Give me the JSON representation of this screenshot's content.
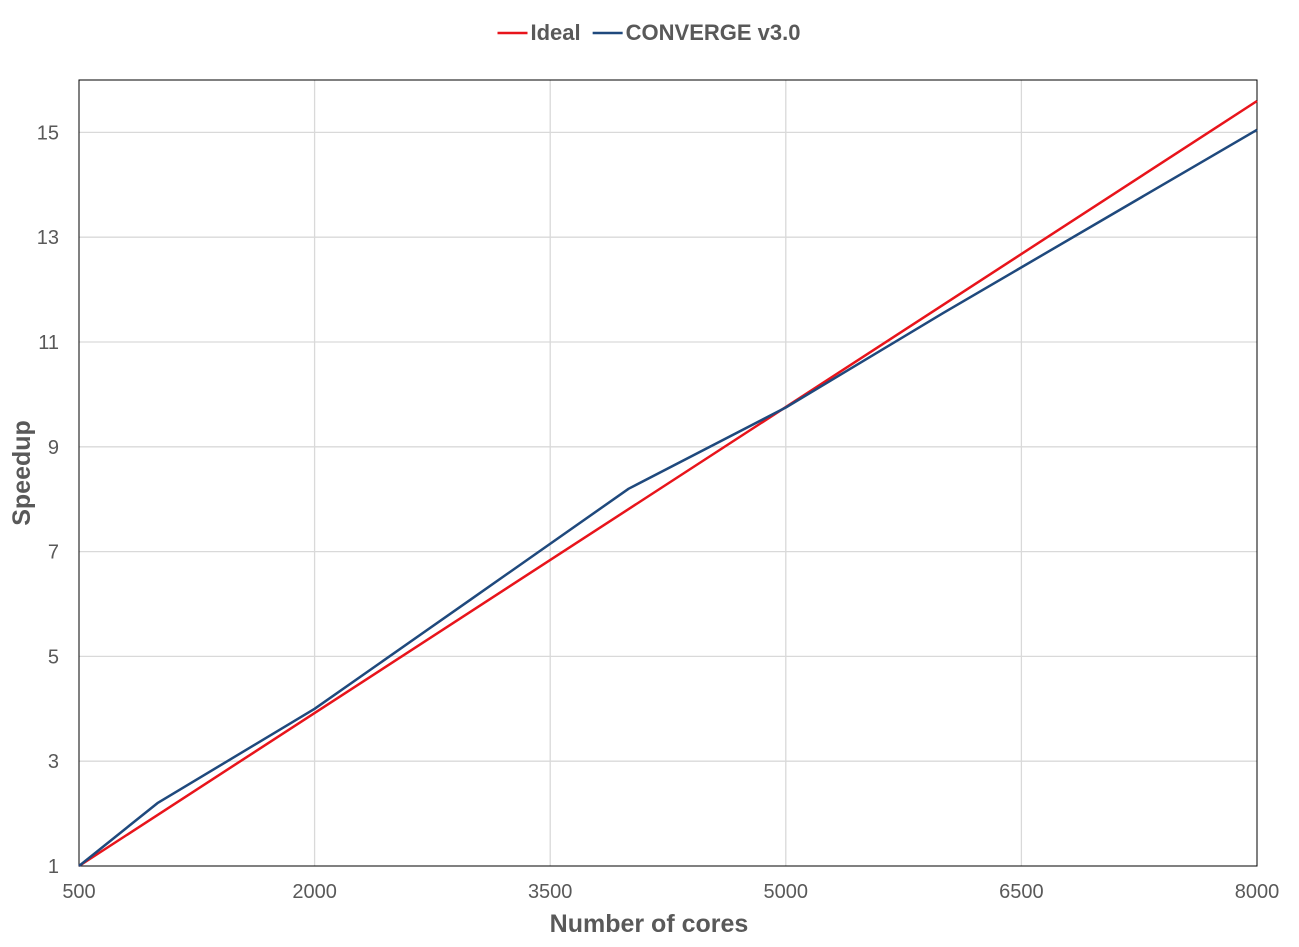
{
  "chart_data": {
    "type": "line",
    "xlabel": "Number of cores",
    "ylabel": "Speedup",
    "xlim": [
      500,
      8000
    ],
    "ylim": [
      1,
      16
    ],
    "x_ticks": [
      500,
      2000,
      3500,
      5000,
      6500,
      8000
    ],
    "y_ticks": [
      1,
      3,
      5,
      7,
      9,
      11,
      13,
      15
    ],
    "x_tick_labels": [
      "500",
      "2000",
      "3500",
      "5000",
      "6500",
      "8000"
    ],
    "y_tick_labels": [
      "1",
      "3",
      "5",
      "7",
      "9",
      "11",
      "13",
      "15"
    ],
    "grid": true,
    "legend_position": "top-center",
    "series": [
      {
        "name": "Ideal",
        "color": "#e8141b",
        "x": [
          500,
          8000
        ],
        "values": [
          1,
          15.6
        ]
      },
      {
        "name": "CONVERGE v3.0",
        "color": "#1f497d",
        "x": [
          500,
          1000,
          2000,
          3000,
          4000,
          5000,
          6000,
          7000,
          8000
        ],
        "values": [
          1,
          2.2,
          4.0,
          6.1,
          8.2,
          9.75,
          11.55,
          13.3,
          15.05
        ]
      }
    ]
  }
}
